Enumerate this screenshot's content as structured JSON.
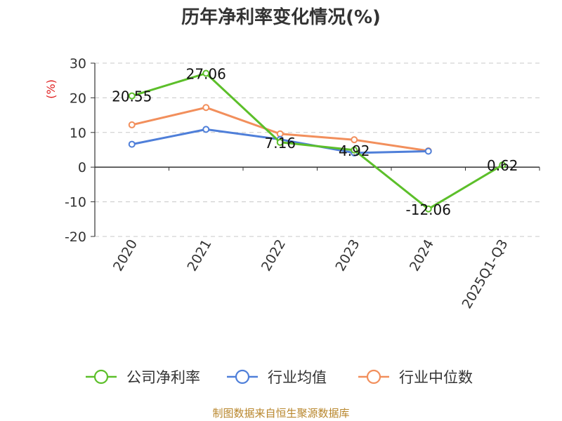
{
  "chart_data": {
    "type": "line",
    "title": "历年净利率变化情况(%)",
    "ylabel": "(%)",
    "categories": [
      "2020",
      "2021",
      "2022",
      "2023",
      "2024",
      "2025Q1-Q3"
    ],
    "ylim": [
      -20,
      30
    ],
    "yticks": [
      30,
      20,
      10,
      0,
      -10,
      -20
    ],
    "grid": true,
    "legend_position": "bottom",
    "series": [
      {
        "name": "公司净利率",
        "values": [
          20.55,
          27.06,
          7.16,
          4.92,
          -12.06,
          0.62
        ],
        "color": "#5cbf2a",
        "labels": [
          "20.55",
          "27.06",
          "7.16",
          "4.92",
          "-12.06",
          "0.62"
        ]
      },
      {
        "name": "行业均值",
        "values": [
          6.6,
          10.9,
          8.0,
          4.1,
          4.6,
          null
        ],
        "color": "#4f7fd9"
      },
      {
        "name": "行业中位数",
        "values": [
          12.2,
          17.2,
          9.6,
          7.9,
          4.7,
          null
        ],
        "color": "#f28f5c"
      }
    ]
  },
  "footer": {
    "source_text": "制图数据来自恒生聚源数据库"
  }
}
